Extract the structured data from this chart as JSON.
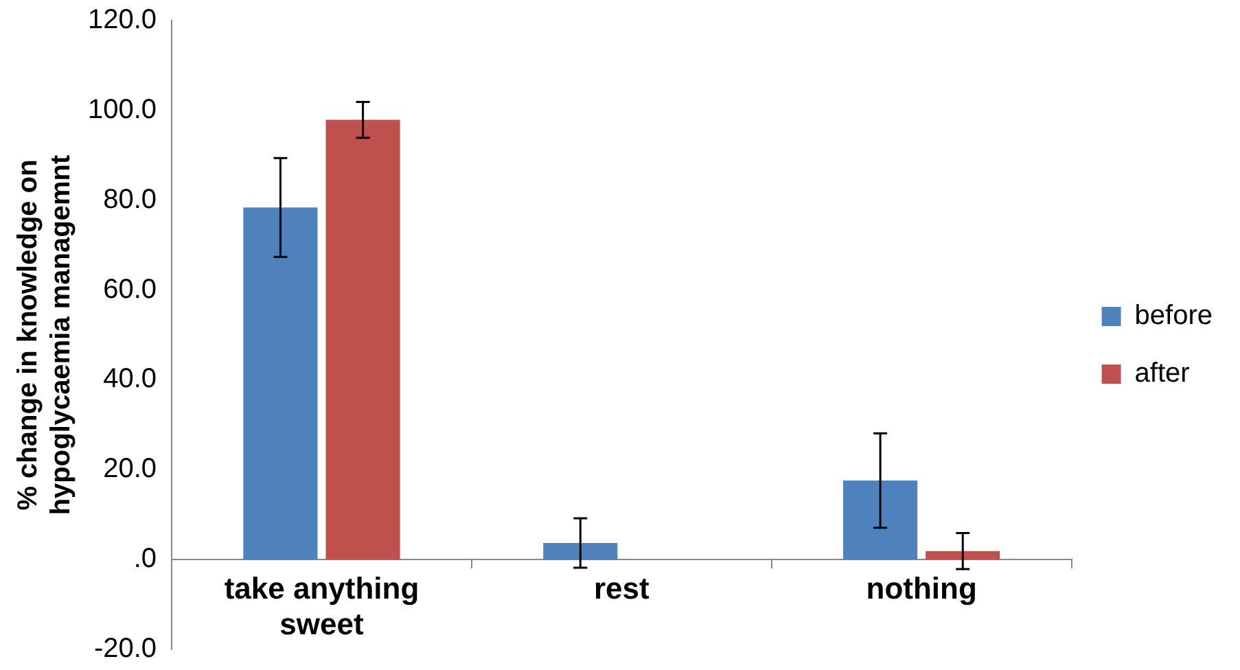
{
  "chart_data": {
    "type": "bar",
    "ylabel": "% change in knowledge on hypoglycaemia managemnt",
    "categories": [
      "take anything sweet",
      "rest",
      "nothing"
    ],
    "series": [
      {
        "name": "before",
        "color": "#4f81bd",
        "values": [
          78.4,
          3.7,
          17.6
        ],
        "errors": [
          11,
          5.5,
          10.5
        ]
      },
      {
        "name": "after",
        "color": "#c0504d",
        "values": [
          97.9,
          0,
          1.9
        ],
        "errors": [
          4,
          null,
          4
        ]
      }
    ],
    "ylim": [
      -20,
      120
    ],
    "yticks": [
      {
        "value": -20,
        "label": "-20.0"
      },
      {
        "value": 0,
        "label": ".0"
      },
      {
        "value": 20,
        "label": "20.0"
      },
      {
        "value": 40,
        "label": "40.0"
      },
      {
        "value": 60,
        "label": "60.0"
      },
      {
        "value": 80,
        "label": "80.0"
      },
      {
        "value": 100,
        "label": "100.0"
      },
      {
        "value": 120,
        "label": "120.0"
      }
    ],
    "grid": false,
    "legend": "right"
  }
}
